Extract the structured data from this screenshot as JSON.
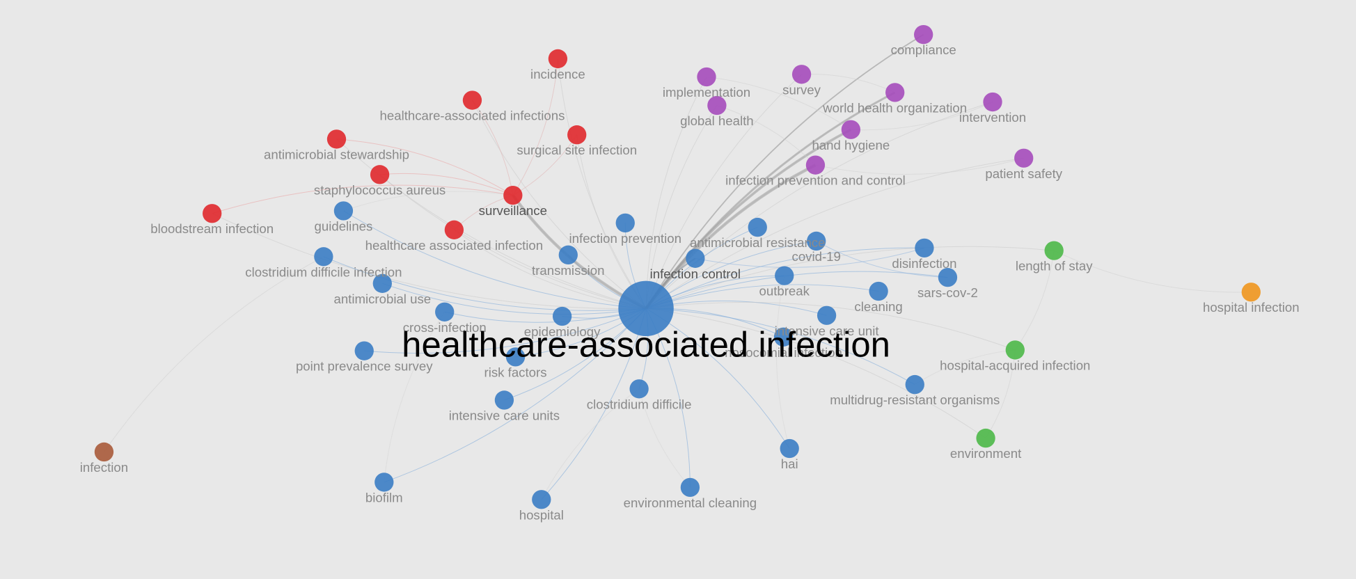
{
  "nodes": [
    {
      "label": "incidence"
    },
    {
      "label": "healthcare-associated infections"
    },
    {
      "label": "antimicrobial stewardship"
    },
    {
      "label": "surgical site infection"
    },
    {
      "label": "staphylococcus aureus"
    },
    {
      "label": "surveillance"
    },
    {
      "label": "bloodstream infection"
    },
    {
      "label": "healthcare associated infection"
    },
    {
      "label": "compliance"
    },
    {
      "label": "implementation"
    },
    {
      "label": "survey"
    },
    {
      "label": "world health organization"
    },
    {
      "label": "global health"
    },
    {
      "label": "intervention"
    },
    {
      "label": "hand hygiene"
    },
    {
      "label": "infection prevention and control"
    },
    {
      "label": "patient safety"
    },
    {
      "label": "guidelines"
    },
    {
      "label": "clostridium difficile infection"
    },
    {
      "label": "infection prevention"
    },
    {
      "label": "antimicrobial resistance"
    },
    {
      "label": "covid-19"
    },
    {
      "label": "transmission"
    },
    {
      "label": "infection control"
    },
    {
      "label": "disinfection"
    },
    {
      "label": "sars-cov-2"
    },
    {
      "label": "outbreak"
    },
    {
      "label": "antimicrobial use"
    },
    {
      "label": "cleaning"
    },
    {
      "label": "healthcare-associated infection"
    },
    {
      "label": "cross-infection"
    },
    {
      "label": "epidemiology"
    },
    {
      "label": "intensive care unit"
    },
    {
      "label": "point prevalence survey"
    },
    {
      "label": "risk factors"
    },
    {
      "label": "nosocomial infection"
    },
    {
      "label": "clostridium difficile"
    },
    {
      "label": "multidrug-resistant organisms"
    },
    {
      "label": "intensive care units"
    },
    {
      "label": "hai"
    },
    {
      "label": "biofilm"
    },
    {
      "label": "environmental cleaning"
    },
    {
      "label": "hospital"
    },
    {
      "label": "length of stay"
    },
    {
      "label": "hospital-acquired infection"
    },
    {
      "label": "environment"
    },
    {
      "label": "hospital infection"
    },
    {
      "label": "infection"
    }
  ]
}
